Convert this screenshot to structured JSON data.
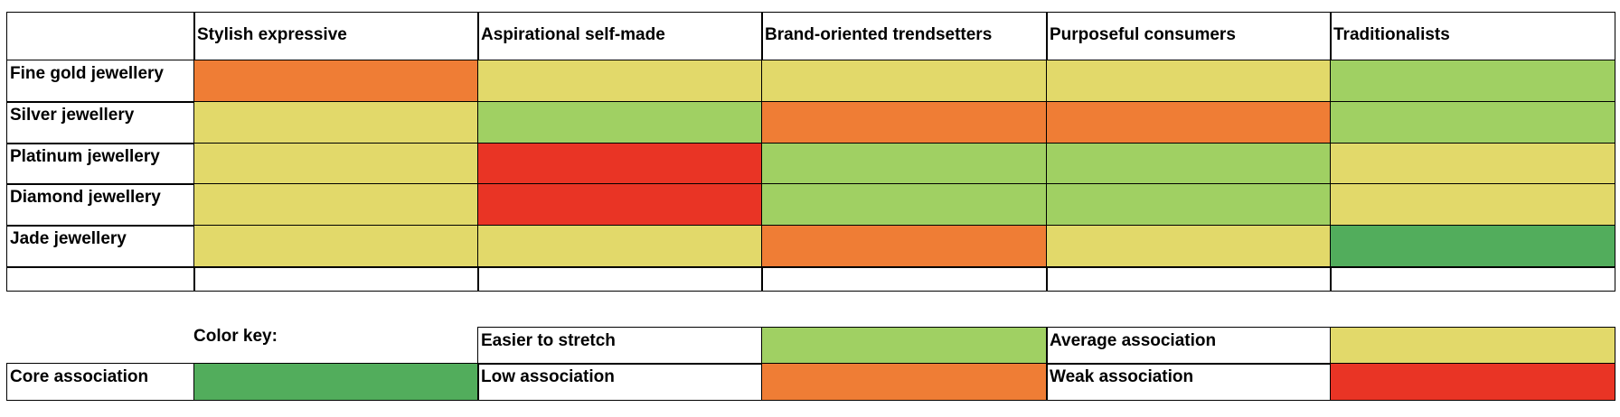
{
  "table": {
    "columns": [
      "Stylish expressive",
      "Aspirational self-made",
      "Brand-oriented trendsetters",
      "Purposeful consumers",
      "Traditionalists"
    ],
    "rows": [
      {
        "label": "Fine gold jewellery",
        "cells": [
          "#ef7d35",
          "#e2d96a",
          "#e2d96a",
          "#e2d96a",
          "#a0d063"
        ]
      },
      {
        "label": "Silver jewellery",
        "cells": [
          "#e2d96a",
          "#a0d063",
          "#ef7d35",
          "#ef7d35",
          "#a0d063"
        ]
      },
      {
        "label": "Platinum jewellery",
        "cells": [
          "#e2d96a",
          "#e93425",
          "#a0d063",
          "#a0d063",
          "#e2d96a"
        ]
      },
      {
        "label": "Diamond jewellery",
        "cells": [
          "#e2d96a",
          "#e93425",
          "#a0d063",
          "#a0d063",
          "#e2d96a"
        ]
      },
      {
        "label": "Jade jewellery",
        "cells": [
          "#e2d96a",
          "#e2d96a",
          "#ef7d35",
          "#e2d96a",
          "#52ad5c"
        ]
      }
    ]
  },
  "color_key": {
    "title": "Color key:",
    "items": [
      {
        "label": "Easier to stretch",
        "color": "#a0d063"
      },
      {
        "label": "Average association",
        "color": "#e2d96a"
      },
      {
        "label": "Core association",
        "color": "#52ad5c"
      },
      {
        "label": "Low association",
        "color": "#ef7d35"
      },
      {
        "label": "Weak association",
        "color": "#e93425"
      }
    ]
  }
}
